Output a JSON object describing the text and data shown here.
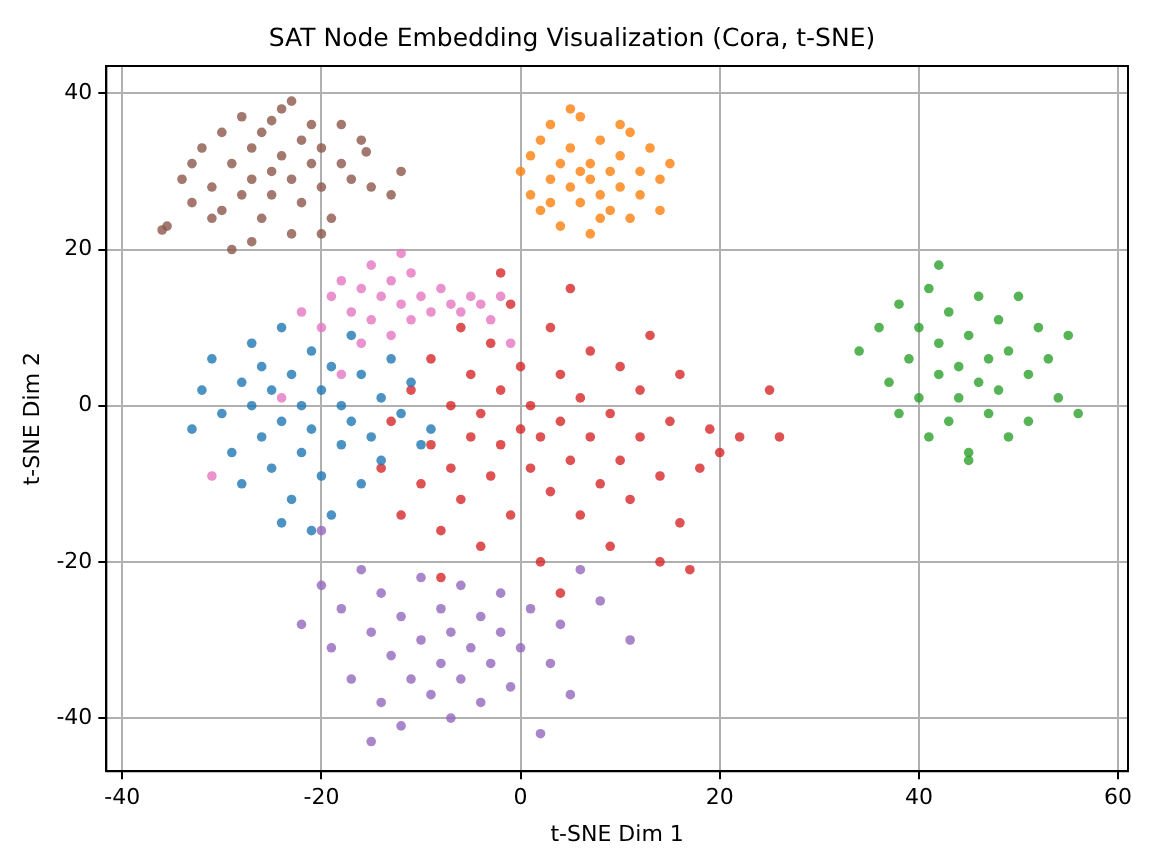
{
  "chart_data": {
    "type": "scatter",
    "title": "SAT Node Embedding Visualization (Cora, t-SNE)",
    "xlabel": "t-SNE Dim 1",
    "ylabel": "t-SNE Dim 2",
    "xlim": [
      -41.6,
      61
    ],
    "ylim": [
      -46.8,
      43.5
    ],
    "xticks": [
      -40,
      -20,
      0,
      20,
      40,
      60
    ],
    "yticks": [
      -40,
      -20,
      0,
      20,
      40
    ],
    "grid": true,
    "legend": false,
    "marker": "circle",
    "series": [
      {
        "color": "#8c564b",
        "x": [
          -36,
          -35.5,
          -33,
          -32,
          -31,
          -30,
          -30,
          -29,
          -28,
          -28,
          -27,
          -27,
          -26,
          -26,
          -25,
          -25,
          -24,
          -24,
          -23,
          -23,
          -22,
          -22,
          -21,
          -21,
          -20,
          -20,
          -19,
          -18,
          -17,
          -16,
          -15,
          -13,
          -12,
          -33,
          -31,
          -29,
          -27,
          -25,
          -23,
          -20,
          -18,
          -34,
          -15.5
        ],
        "values": [
          22.5,
          23,
          31,
          33,
          28,
          35,
          25,
          31,
          37,
          27,
          33,
          29,
          24,
          35,
          30,
          27,
          38,
          32,
          29,
          22,
          34,
          26,
          31,
          36,
          28,
          33,
          24,
          31,
          29,
          34,
          28,
          27,
          30,
          26,
          24,
          20,
          21,
          36.5,
          39,
          22,
          36,
          29,
          32.5
        ]
      },
      {
        "color": "#ff7f0e",
        "x": [
          0,
          1,
          1,
          2,
          2,
          3,
          3,
          4,
          4,
          5,
          5,
          6,
          6,
          6,
          7,
          7,
          7,
          8,
          8,
          9,
          9,
          10,
          10,
          11,
          11,
          12,
          12,
          13,
          14,
          14,
          15,
          5,
          8,
          3,
          10
        ],
        "values": [
          30,
          27,
          32,
          34,
          25,
          29,
          36,
          31,
          23,
          28,
          33,
          30,
          26,
          37,
          31,
          22,
          29,
          34,
          27,
          30,
          25,
          32,
          28,
          35,
          24,
          30,
          27,
          33,
          29,
          25,
          31,
          38,
          24,
          26,
          36
        ]
      },
      {
        "color": "#e377c2",
        "x": [
          -20,
          -19,
          -18,
          -17,
          -16,
          -15,
          -15,
          -14,
          -13,
          -13,
          -12,
          -11,
          -11,
          -10,
          -9,
          -8,
          -7,
          -6,
          -5,
          -4,
          -3,
          -2,
          -1,
          -12,
          -16,
          -22,
          -24,
          -31,
          -18
        ],
        "values": [
          10,
          14,
          16,
          12,
          15,
          18,
          11,
          14,
          16,
          9,
          13,
          17,
          11,
          14,
          12,
          15,
          13,
          12,
          14,
          13,
          11,
          14,
          8,
          19.5,
          8,
          12,
          1,
          -9,
          4
        ]
      },
      {
        "color": "#1f77b4",
        "x": [
          -33,
          -32,
          -31,
          -30,
          -29,
          -28,
          -28,
          -27,
          -27,
          -26,
          -26,
          -25,
          -25,
          -24,
          -24,
          -23,
          -23,
          -22,
          -22,
          -21,
          -21,
          -20,
          -20,
          -19,
          -19,
          -18,
          -18,
          -17,
          -17,
          -16,
          -16,
          -15,
          -14,
          -14,
          -13,
          -12,
          -11,
          -10,
          -21,
          -24,
          -9
        ],
        "values": [
          -3,
          2,
          6,
          -1,
          -6,
          3,
          -10,
          8,
          0,
          -4,
          5,
          -8,
          2,
          10,
          -2,
          4,
          -12,
          0,
          -6,
          7,
          -3,
          2,
          -9,
          5,
          -14,
          0,
          -5,
          9,
          -2,
          4,
          -10,
          -4,
          1,
          -7,
          6,
          -1,
          3,
          -5,
          -16,
          -15,
          -3
        ]
      },
      {
        "color": "#d62728",
        "x": [
          -14,
          -13,
          -12,
          -11,
          -10,
          -9,
          -9,
          -8,
          -7,
          -7,
          -6,
          -6,
          -5,
          -5,
          -4,
          -4,
          -3,
          -3,
          -2,
          -2,
          -1,
          -1,
          0,
          0,
          1,
          1,
          2,
          2,
          3,
          3,
          4,
          4,
          5,
          5,
          6,
          6,
          7,
          7,
          8,
          9,
          9,
          10,
          10,
          11,
          12,
          12,
          13,
          14,
          14,
          15,
          16,
          16,
          17,
          18,
          19,
          20,
          22,
          25,
          26,
          -2,
          -8,
          4
        ],
        "values": [
          -8,
          -2,
          -14,
          2,
          -10,
          -5,
          6,
          -16,
          0,
          -8,
          10,
          -12,
          -4,
          4,
          -18,
          -1,
          8,
          -9,
          -5,
          2,
          -14,
          13,
          -3,
          5,
          -8,
          0,
          -20,
          -4,
          10,
          -11,
          -2,
          4,
          -7,
          15,
          -14,
          1,
          -4,
          7,
          -10,
          -1,
          -18,
          5,
          -7,
          -12,
          2,
          -4,
          9,
          -9,
          -20,
          -2,
          4,
          -15,
          -21,
          -8,
          -3,
          -6,
          -4,
          2,
          -4,
          17,
          -22,
          -24
        ]
      },
      {
        "color": "#9467bd",
        "x": [
          -22,
          -20,
          -19,
          -18,
          -17,
          -16,
          -15,
          -14,
          -14,
          -13,
          -12,
          -12,
          -11,
          -10,
          -10,
          -9,
          -8,
          -8,
          -7,
          -7,
          -6,
          -6,
          -5,
          -4,
          -4,
          -3,
          -2,
          -2,
          -1,
          0,
          1,
          2,
          3,
          4,
          5,
          6,
          8,
          11,
          -20,
          -15
        ],
        "values": [
          -28,
          -23,
          -31,
          -26,
          -35,
          -21,
          -29,
          -38,
          -24,
          -32,
          -27,
          -41,
          -35,
          -22,
          -30,
          -37,
          -26,
          -33,
          -40,
          -29,
          -23,
          -35,
          -31,
          -27,
          -38,
          -33,
          -24,
          -29,
          -36,
          -31,
          -26,
          -42,
          -33,
          -28,
          -37,
          -21,
          -25,
          -30,
          -16,
          -43
        ]
      },
      {
        "color": "#2ca02c",
        "x": [
          34,
          36,
          37,
          38,
          38,
          39,
          40,
          40,
          41,
          41,
          42,
          42,
          43,
          43,
          44,
          44,
          45,
          45,
          46,
          46,
          47,
          47,
          48,
          48,
          49,
          49,
          50,
          51,
          51,
          52,
          53,
          54,
          55,
          56,
          42,
          45
        ],
        "values": [
          7,
          10,
          3,
          -1,
          13,
          6,
          1,
          10,
          -4,
          15,
          4,
          8,
          -2,
          12,
          5,
          1,
          9,
          -6,
          3,
          14,
          6,
          -1,
          11,
          2,
          -4,
          7,
          14,
          4,
          -2,
          10,
          6,
          1,
          9,
          -1,
          18,
          -7
        ]
      }
    ]
  }
}
